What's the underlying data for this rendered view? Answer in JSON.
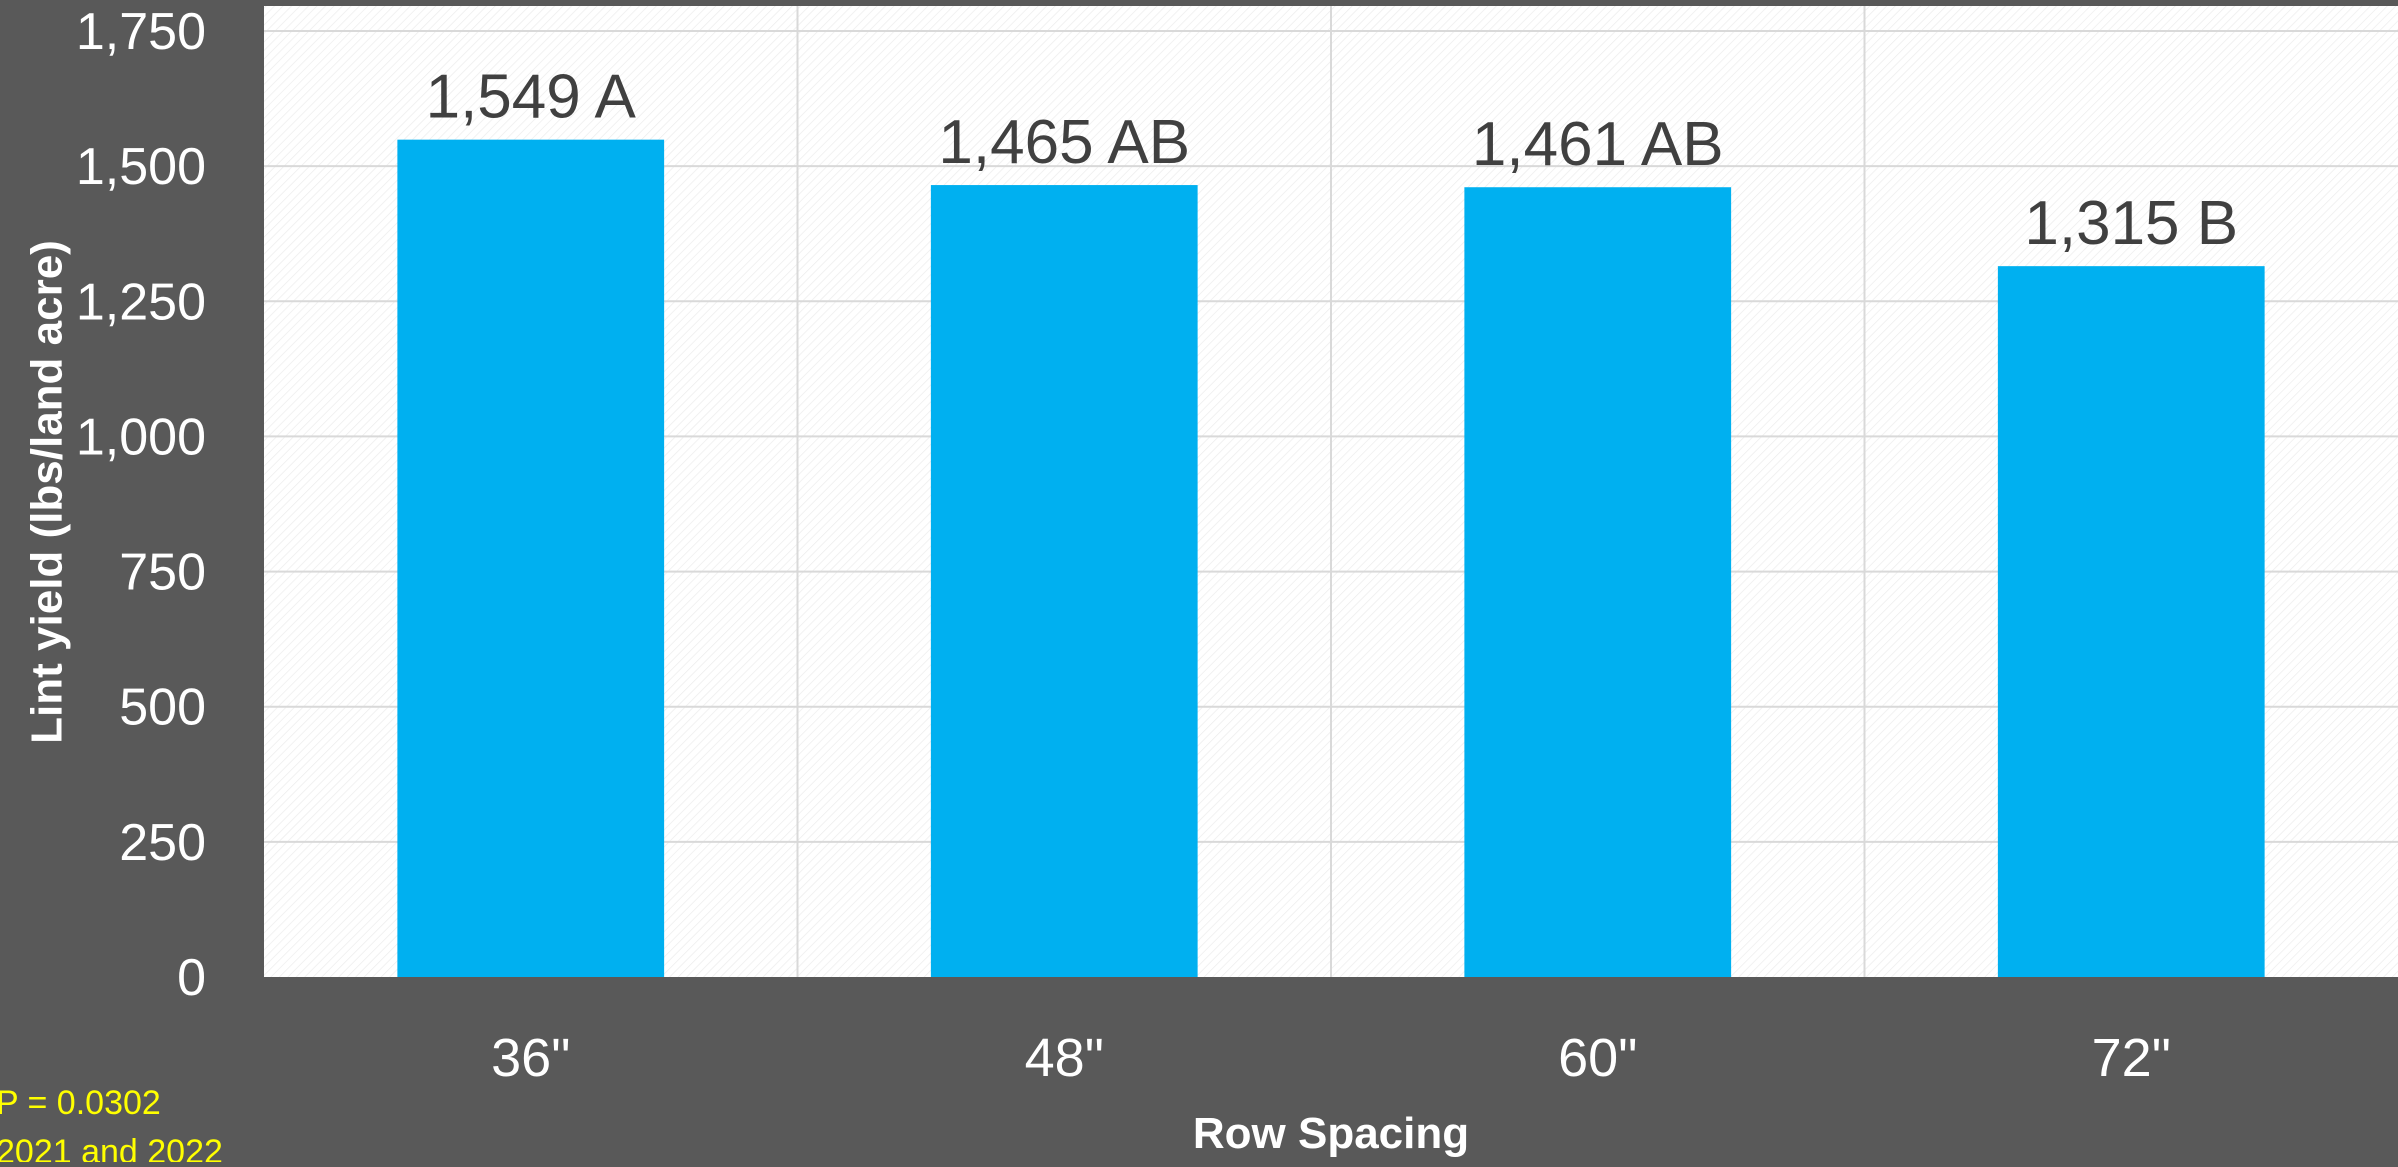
{
  "colors": {
    "background": "#595959",
    "plot_area": "#ffffff",
    "bar": "#00b0f0",
    "gridline": "#d9d9d9",
    "tick_text": "#ffffff",
    "data_label_text": "#404040",
    "note_text": "#ffff00"
  },
  "notes": {
    "p_value": "P = 0.0302",
    "years": "2021 and 2022"
  },
  "chart_data": {
    "type": "bar",
    "title": "",
    "xlabel": "Row Spacing",
    "ylabel": "Lint yield (lbs/land acre)",
    "categories": [
      "36\"",
      "48\"",
      "60\"",
      "72\""
    ],
    "values": [
      1549,
      1465,
      1461,
      1315
    ],
    "data_labels": [
      "1,549 A",
      "1,465 AB",
      "1,461 AB",
      "1,315 B"
    ],
    "ylim": [
      0,
      1750
    ],
    "yticks": [
      0,
      250,
      500,
      750,
      1000,
      1250,
      1500,
      1750
    ],
    "ytick_labels": [
      "0",
      "250",
      "500",
      "750",
      "1,000",
      "1,250",
      "1,500",
      "1,750"
    ],
    "grid": true,
    "legend": "none"
  }
}
